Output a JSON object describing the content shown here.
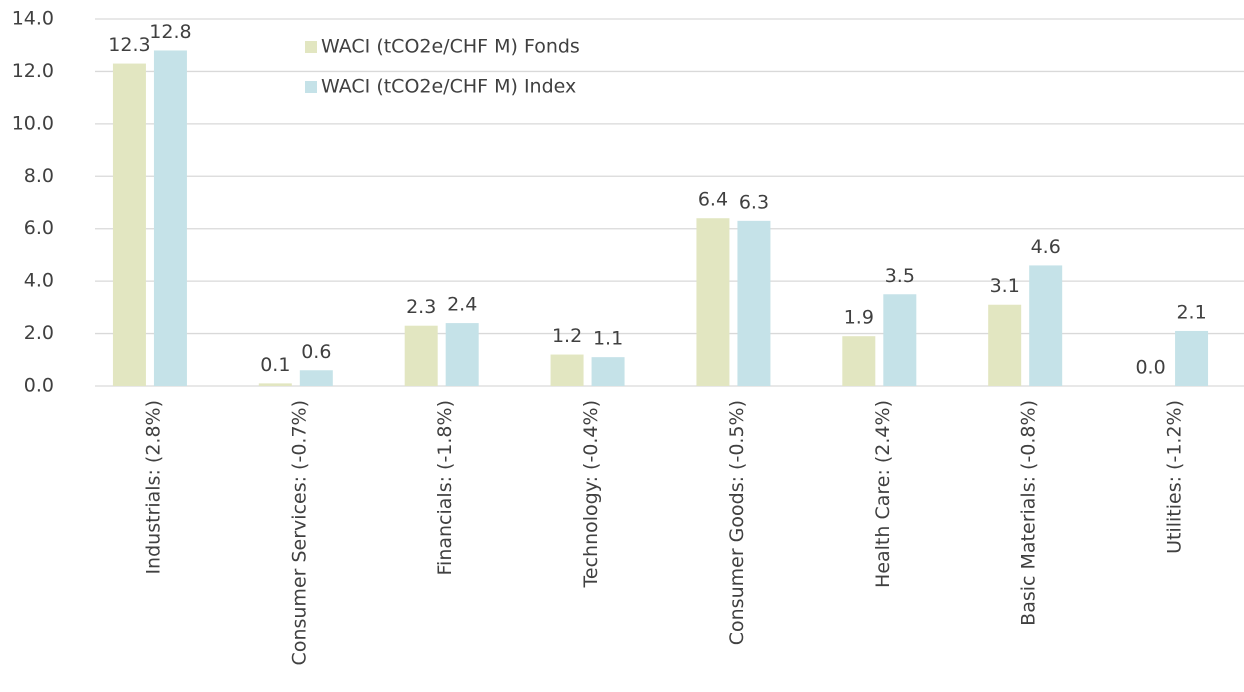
{
  "chart_data": {
    "type": "bar",
    "categories": [
      "Industrials: (2.8%)",
      "Consumer Services: (-0.7%)",
      "Financials: (-1.8%)",
      "Technology: (-0.4%)",
      "Consumer Goods: (-0.5%)",
      "Health Care: (2.4%)",
      "Basic Materials: (-0.8%)",
      "Utilities: (-1.2%)"
    ],
    "series": [
      {
        "name": "WACI (tCO2e/CHF M) Fonds",
        "color": "#e2e6c1",
        "values": [
          12.3,
          0.1,
          2.3,
          1.2,
          6.4,
          1.9,
          3.1,
          0
        ],
        "value_labels": [
          "12.3",
          "0.1",
          "2.3",
          "1.2",
          "6.4",
          "1.9",
          "3.1",
          "0.0"
        ]
      },
      {
        "name": "WACI (tCO2e/CHF M) Index",
        "color": "#c5e2e8",
        "values": [
          12.8,
          0.6,
          2.4,
          1.1,
          6.3,
          3.5,
          4.6,
          2.1
        ],
        "value_labels": [
          "12.8",
          "0.6",
          "2.4",
          "1.1",
          "6.3",
          "3.5",
          "4.6",
          "2.1"
        ]
      }
    ],
    "ylim": [
      0,
      14
    ],
    "yticks": [
      {
        "value": 0,
        "label": "0.0"
      },
      {
        "value": 2,
        "label": "2.0"
      },
      {
        "value": 4,
        "label": "4.0"
      },
      {
        "value": 6,
        "label": "6.0"
      },
      {
        "value": 8,
        "label": "8.0"
      },
      {
        "value": 10,
        "label": "10.0"
      },
      {
        "value": 12,
        "label": "12.0"
      },
      {
        "value": 14,
        "label": "14.0"
      }
    ],
    "grid": true,
    "legend": "upper-left"
  }
}
